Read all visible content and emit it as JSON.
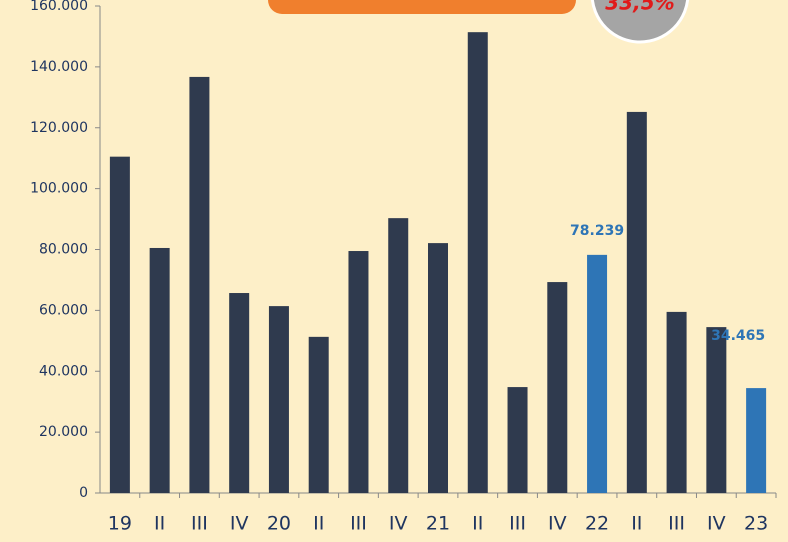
{
  "chart_data": {
    "type": "bar",
    "annotation": "33,5%",
    "categories": [
      "19",
      "II",
      "III",
      "IV",
      "20",
      "II",
      "III",
      "IV",
      "21",
      "II",
      "III",
      "IV",
      "22",
      "II",
      "III",
      "IV",
      "23"
    ],
    "values": [
      110500,
      80500,
      136700,
      65700,
      61400,
      51300,
      79500,
      90300,
      82100,
      151400,
      34800,
      69300,
      78239,
      125200,
      59500,
      54500,
      34465
    ],
    "value_labels": [
      null,
      null,
      null,
      null,
      null,
      null,
      null,
      null,
      null,
      null,
      null,
      null,
      "78.239",
      null,
      null,
      null,
      "34.465"
    ],
    "colors": [
      "#2f3a4e",
      "#2f3a4e",
      "#2f3a4e",
      "#2f3a4e",
      "#2f3a4e",
      "#2f3a4e",
      "#2f3a4e",
      "#2f3a4e",
      "#2f3a4e",
      "#2f3a4e",
      "#2f3a4e",
      "#2f3a4e",
      "#2e75b6",
      "#2f3a4e",
      "#2f3a4e",
      "#2f3a4e",
      "#2e75b6"
    ],
    "ylim": [
      0,
      160000
    ],
    "yticks": [
      0,
      {
        "value": 20000,
        "label": "20.000"
      },
      {
        "value": 40000,
        "label": "40.000"
      },
      {
        "value": 60000,
        "label": "60.000"
      },
      {
        "value": 80000,
        "label": "80.000"
      },
      {
        "value": 100000,
        "label": "100.000"
      },
      {
        "value": 120000,
        "label": "120.000"
      },
      {
        "value": 140000,
        "label": "140.000"
      },
      {
        "value": 160000,
        "label": "160.000"
      }
    ],
    "grid": false
  }
}
